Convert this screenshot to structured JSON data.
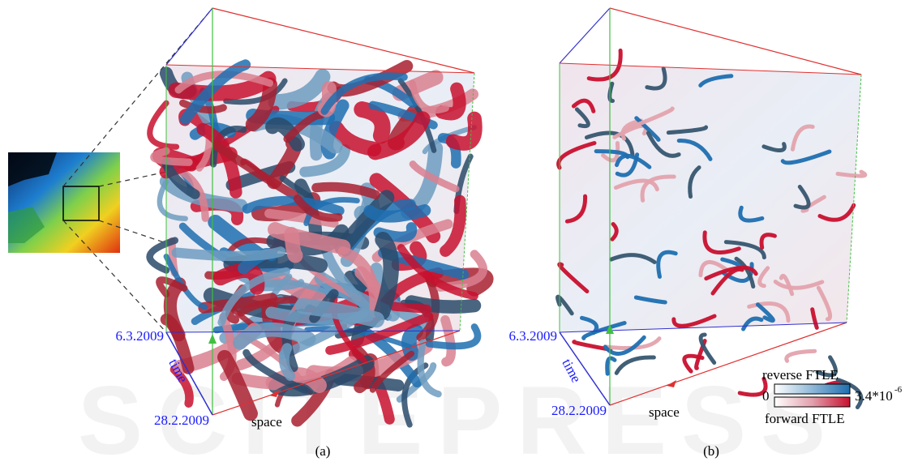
{
  "figure": {
    "watermark": "SCITEPRESS",
    "panels": [
      {
        "label": "(a)",
        "time_end": "6.3.2009",
        "time_axis": "time",
        "time_start": "28.2.2009",
        "space_axis": "space"
      },
      {
        "label": "(b)",
        "time_end": "6.3.2009",
        "time_axis": "time",
        "time_start": "28.2.2009",
        "space_axis": "space"
      }
    ],
    "legend": {
      "top_title": "reverse FTLE",
      "min": "0",
      "max_base": "3.4*10",
      "max_exponent": "-6",
      "bottom_title": "forward FTLE"
    }
  }
}
